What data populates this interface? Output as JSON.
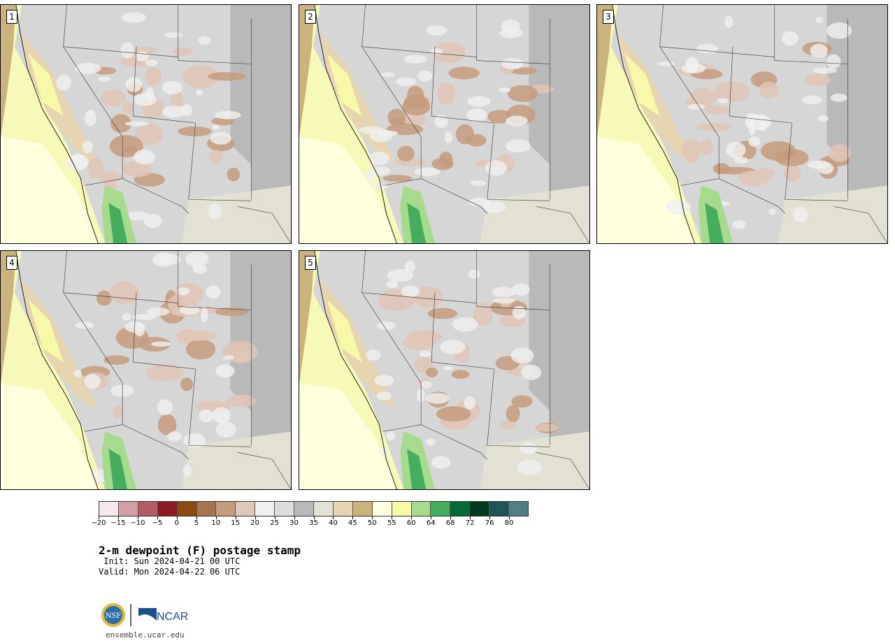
{
  "panels": [
    {
      "label": "1"
    },
    {
      "label": "2"
    },
    {
      "label": "3"
    },
    {
      "label": "4"
    },
    {
      "label": "5"
    }
  ],
  "colorbar": {
    "colors": [
      "#f6e8ea",
      "#d4a0a7",
      "#b25c64",
      "#8b1a24",
      "#8a4a12",
      "#a87450",
      "#c59b7e",
      "#e0c6b6",
      "#f0f0f0",
      "#dcdcdc",
      "#b9b9b9",
      "#e2e1d4",
      "#e6d5b0",
      "#cbb47c",
      "#ffffde",
      "#f7f9a8",
      "#a6da8d",
      "#45ad5e",
      "#006b36",
      "#00391e",
      "#1e5358",
      "#517e82"
    ],
    "tick_labels": [
      "−20",
      "−15",
      "−10",
      "−5",
      "0",
      "5",
      "10",
      "15",
      "20",
      "25",
      "30",
      "35",
      "40",
      "45",
      "50",
      "55",
      "60",
      "64",
      "68",
      "72",
      "76",
      "80"
    ]
  },
  "title": "2-m dewpoint (F) postage stamp",
  "init": " Init: Sun 2024-04-21 00 UTC",
  "valid": "Valid: Mon 2024-04-22 06 UTC",
  "logos": {
    "nsf": "NSF",
    "ncar": "NCAR"
  },
  "site": "ensemble.ucar.edu"
}
